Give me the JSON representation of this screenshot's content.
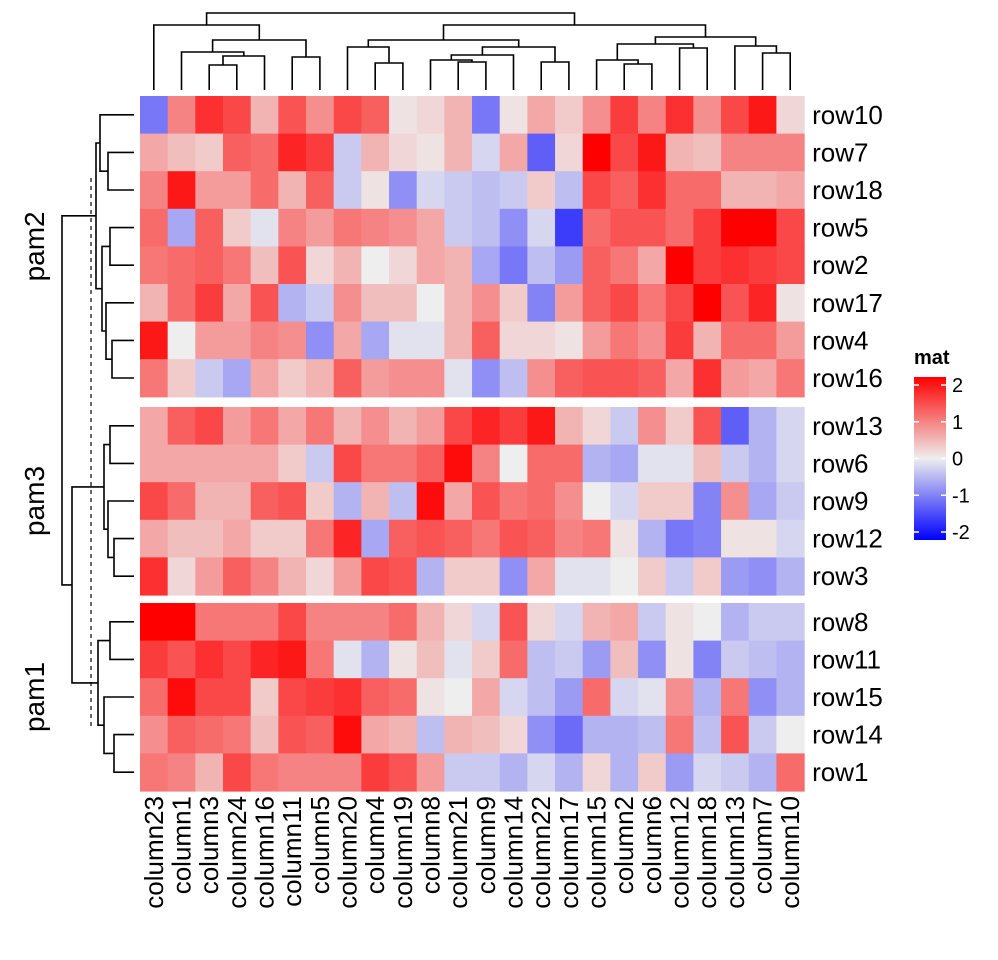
{
  "chart_data": {
    "type": "heatmap",
    "columns": [
      "column23",
      "column1",
      "column3",
      "column24",
      "column16",
      "column11",
      "column5",
      "column20",
      "column4",
      "column19",
      "column8",
      "column21",
      "column9",
      "column14",
      "column22",
      "column17",
      "column15",
      "column2",
      "column6",
      "column12",
      "column18",
      "column13",
      "column7",
      "column10"
    ],
    "row_groups": [
      {
        "label": "pam2",
        "rows": [
          "row10",
          "row7",
          "row18",
          "row5",
          "row2",
          "row17",
          "row4",
          "row16"
        ]
      },
      {
        "label": "pam3",
        "rows": [
          "row13",
          "row6",
          "row9",
          "row12",
          "row3"
        ]
      },
      {
        "label": "pam1",
        "rows": [
          "row8",
          "row11",
          "row15",
          "row14",
          "row1"
        ]
      }
    ],
    "values": {
      "row10": [
        -1.0,
        0.9,
        1.6,
        1.4,
        0.5,
        1.3,
        0.8,
        1.4,
        1.2,
        0.1,
        0.2,
        0.5,
        -1.0,
        0.1,
        0.6,
        0.3,
        0.8,
        1.5,
        0.9,
        1.6,
        0.8,
        1.4,
        1.8,
        0.2
      ],
      "row7": [
        0.6,
        0.4,
        0.3,
        1.2,
        1.1,
        1.7,
        1.5,
        -0.3,
        0.5,
        0.2,
        0.1,
        0.5,
        -0.2,
        0.6,
        -1.2,
        0.2,
        2.0,
        1.4,
        1.8,
        0.5,
        0.4,
        0.9,
        0.9,
        0.9
      ],
      "row18": [
        0.9,
        1.8,
        0.7,
        0.7,
        1.1,
        0.5,
        1.2,
        -0.3,
        0.1,
        -0.8,
        -0.2,
        -0.3,
        -0.4,
        -0.3,
        0.3,
        -0.4,
        1.4,
        1.2,
        1.6,
        1.1,
        1.1,
        0.5,
        0.5,
        0.6
      ],
      "row5": [
        1.1,
        -0.6,
        1.2,
        0.3,
        -0.1,
        0.9,
        0.7,
        1.0,
        0.9,
        0.8,
        0.6,
        -0.3,
        -0.4,
        -0.8,
        -0.2,
        -1.5,
        1.1,
        1.3,
        1.3,
        1.1,
        1.5,
        2.1,
        2.1,
        1.4
      ],
      "row2": [
        1.0,
        1.1,
        1.2,
        1.0,
        0.4,
        1.3,
        0.2,
        0.5,
        0.0,
        0.2,
        0.6,
        0.5,
        -0.6,
        -1.0,
        -0.4,
        -0.7,
        1.2,
        1.0,
        0.6,
        2.0,
        1.5,
        1.6,
        1.5,
        1.4
      ],
      "row17": [
        0.5,
        1.1,
        1.5,
        0.6,
        1.3,
        -0.5,
        -0.3,
        0.8,
        0.4,
        0.4,
        0.0,
        0.5,
        0.8,
        0.3,
        -0.9,
        0.7,
        1.2,
        1.4,
        1.0,
        1.4,
        2.1,
        1.3,
        1.7,
        0.1
      ],
      "row4": [
        1.8,
        0.0,
        0.7,
        0.7,
        0.9,
        0.8,
        -0.8,
        0.6,
        -0.6,
        -0.1,
        -0.1,
        0.5,
        1.2,
        0.2,
        0.2,
        0.1,
        0.7,
        1.0,
        0.8,
        1.5,
        0.5,
        1.1,
        1.1,
        0.7
      ],
      "row16": [
        1.0,
        0.3,
        -0.3,
        -0.6,
        0.6,
        0.3,
        0.5,
        1.2,
        0.7,
        0.8,
        0.8,
        -0.1,
        -0.8,
        -0.4,
        0.8,
        1.2,
        1.3,
        1.3,
        1.2,
        0.6,
        1.6,
        0.7,
        0.6,
        1.0
      ],
      "row13": [
        0.6,
        1.2,
        1.4,
        0.7,
        1.0,
        0.6,
        1.0,
        0.5,
        0.8,
        0.5,
        0.7,
        1.4,
        1.7,
        1.5,
        1.8,
        0.5,
        0.2,
        -0.3,
        0.8,
        0.3,
        1.3,
        -1.2,
        -0.5,
        -0.2
      ],
      "row6": [
        0.6,
        0.6,
        0.6,
        0.6,
        0.6,
        0.3,
        -0.3,
        1.4,
        1.0,
        1.0,
        1.2,
        1.9,
        0.9,
        0.0,
        1.1,
        1.1,
        -0.5,
        -0.6,
        -0.1,
        -0.1,
        0.4,
        -0.3,
        -0.5,
        -0.2
      ],
      "row9": [
        1.4,
        1.1,
        0.5,
        0.5,
        1.2,
        1.3,
        0.3,
        -0.5,
        0.5,
        -0.4,
        1.9,
        0.6,
        1.3,
        1.0,
        1.1,
        0.8,
        0.0,
        -0.2,
        0.3,
        0.3,
        -0.9,
        0.8,
        -0.6,
        -0.3
      ],
      "row12": [
        0.6,
        0.4,
        0.4,
        0.6,
        0.3,
        0.3,
        1.0,
        1.7,
        -0.6,
        1.2,
        1.3,
        1.2,
        1.0,
        1.3,
        1.2,
        0.9,
        1.0,
        0.1,
        -0.5,
        -1.0,
        -0.9,
        0.1,
        0.1,
        -0.2
      ],
      "row3": [
        1.6,
        0.2,
        0.7,
        1.2,
        0.9,
        0.5,
        0.2,
        0.7,
        1.4,
        1.3,
        -0.5,
        0.3,
        0.3,
        -0.8,
        0.6,
        -0.1,
        -0.1,
        0.0,
        0.3,
        -0.3,
        0.3,
        -0.7,
        -0.8,
        -0.5
      ],
      "row8": [
        2.0,
        2.1,
        1.0,
        1.0,
        1.0,
        1.4,
        0.9,
        0.9,
        0.9,
        1.1,
        0.5,
        0.2,
        -0.2,
        1.3,
        0.2,
        -0.2,
        0.5,
        0.6,
        -0.3,
        0.1,
        0.0,
        -0.5,
        -0.3,
        -0.3
      ],
      "row11": [
        1.5,
        1.3,
        1.6,
        1.4,
        1.7,
        1.8,
        1.0,
        -0.1,
        -0.5,
        0.1,
        0.4,
        -0.1,
        0.3,
        1.1,
        -0.4,
        -0.3,
        -0.7,
        0.4,
        -0.8,
        0.1,
        -0.9,
        -0.3,
        -0.4,
        -0.5
      ],
      "row15": [
        1.1,
        1.9,
        1.4,
        1.4,
        0.3,
        1.4,
        1.5,
        1.6,
        1.2,
        1.1,
        0.1,
        0.0,
        0.6,
        -0.2,
        -0.4,
        -0.7,
        1.1,
        -0.2,
        -0.1,
        0.8,
        -0.5,
        1.0,
        -0.8,
        -0.5
      ],
      "row14": [
        0.8,
        1.2,
        1.1,
        1.0,
        0.4,
        1.3,
        1.2,
        1.9,
        0.6,
        0.5,
        -0.4,
        0.5,
        0.4,
        0.2,
        -0.8,
        -1.1,
        -0.5,
        -0.5,
        -0.4,
        1.0,
        -0.4,
        1.3,
        -0.3,
        0.0
      ],
      "row1": [
        1.0,
        0.9,
        0.5,
        1.4,
        1.0,
        0.9,
        0.9,
        0.9,
        1.5,
        1.3,
        0.7,
        -0.3,
        -0.3,
        -0.5,
        -0.2,
        -0.5,
        0.2,
        -0.5,
        0.3,
        -0.7,
        -0.2,
        -0.3,
        -0.5,
        1.1
      ]
    },
    "legend": {
      "title": "mat",
      "ticks": [
        "2",
        "1",
        "0",
        "-1",
        "-2"
      ],
      "range": [
        -2,
        2
      ]
    },
    "colors": {
      "low": "#0000ff",
      "mid": "#eeeeee",
      "high": "#ff0000"
    },
    "column_dendrogram": true,
    "row_dendrogram": true
  }
}
